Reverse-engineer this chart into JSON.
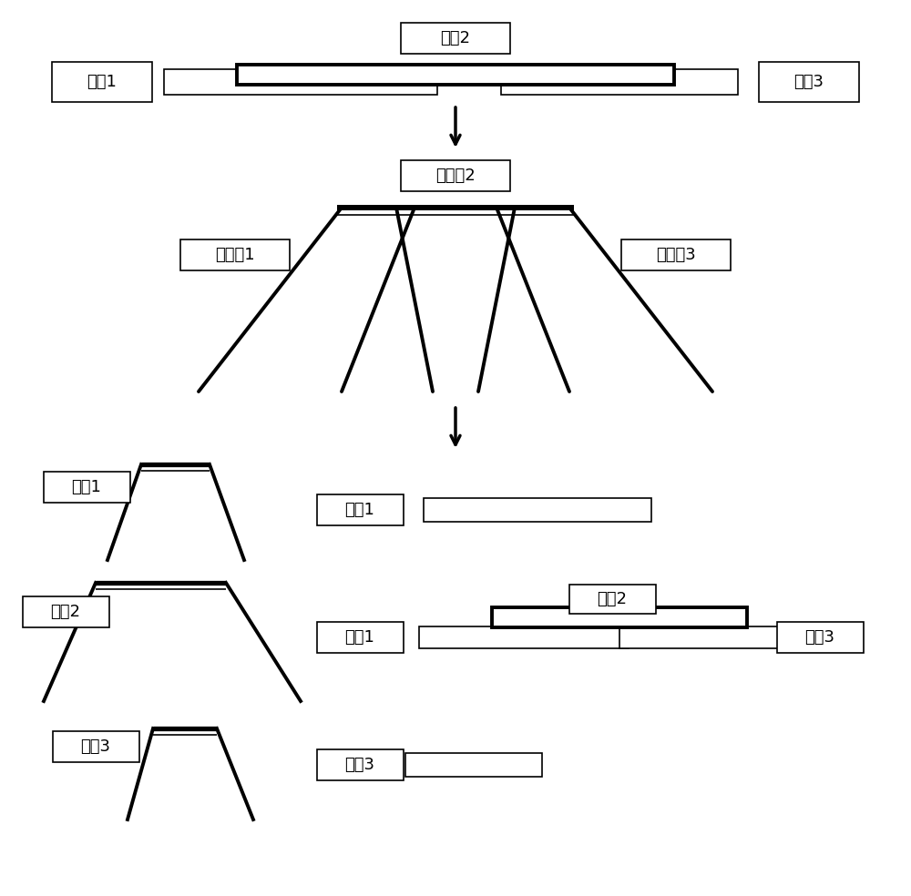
{
  "bg_color": "#ffffff",
  "labels": {
    "xin_hao_1": "信号1",
    "xin_hao_2": "信号2",
    "xin_hao_3": "信号3",
    "lv_bo_qi_1": "滤波器1",
    "lv_bo_qi_2": "滤波器2",
    "lv_bo_qi_3": "滤波器3",
    "tong_dao_1": "通道1",
    "tong_dao_2": "通道2",
    "tong_dao_3": "通道3"
  },
  "font_size": 13
}
